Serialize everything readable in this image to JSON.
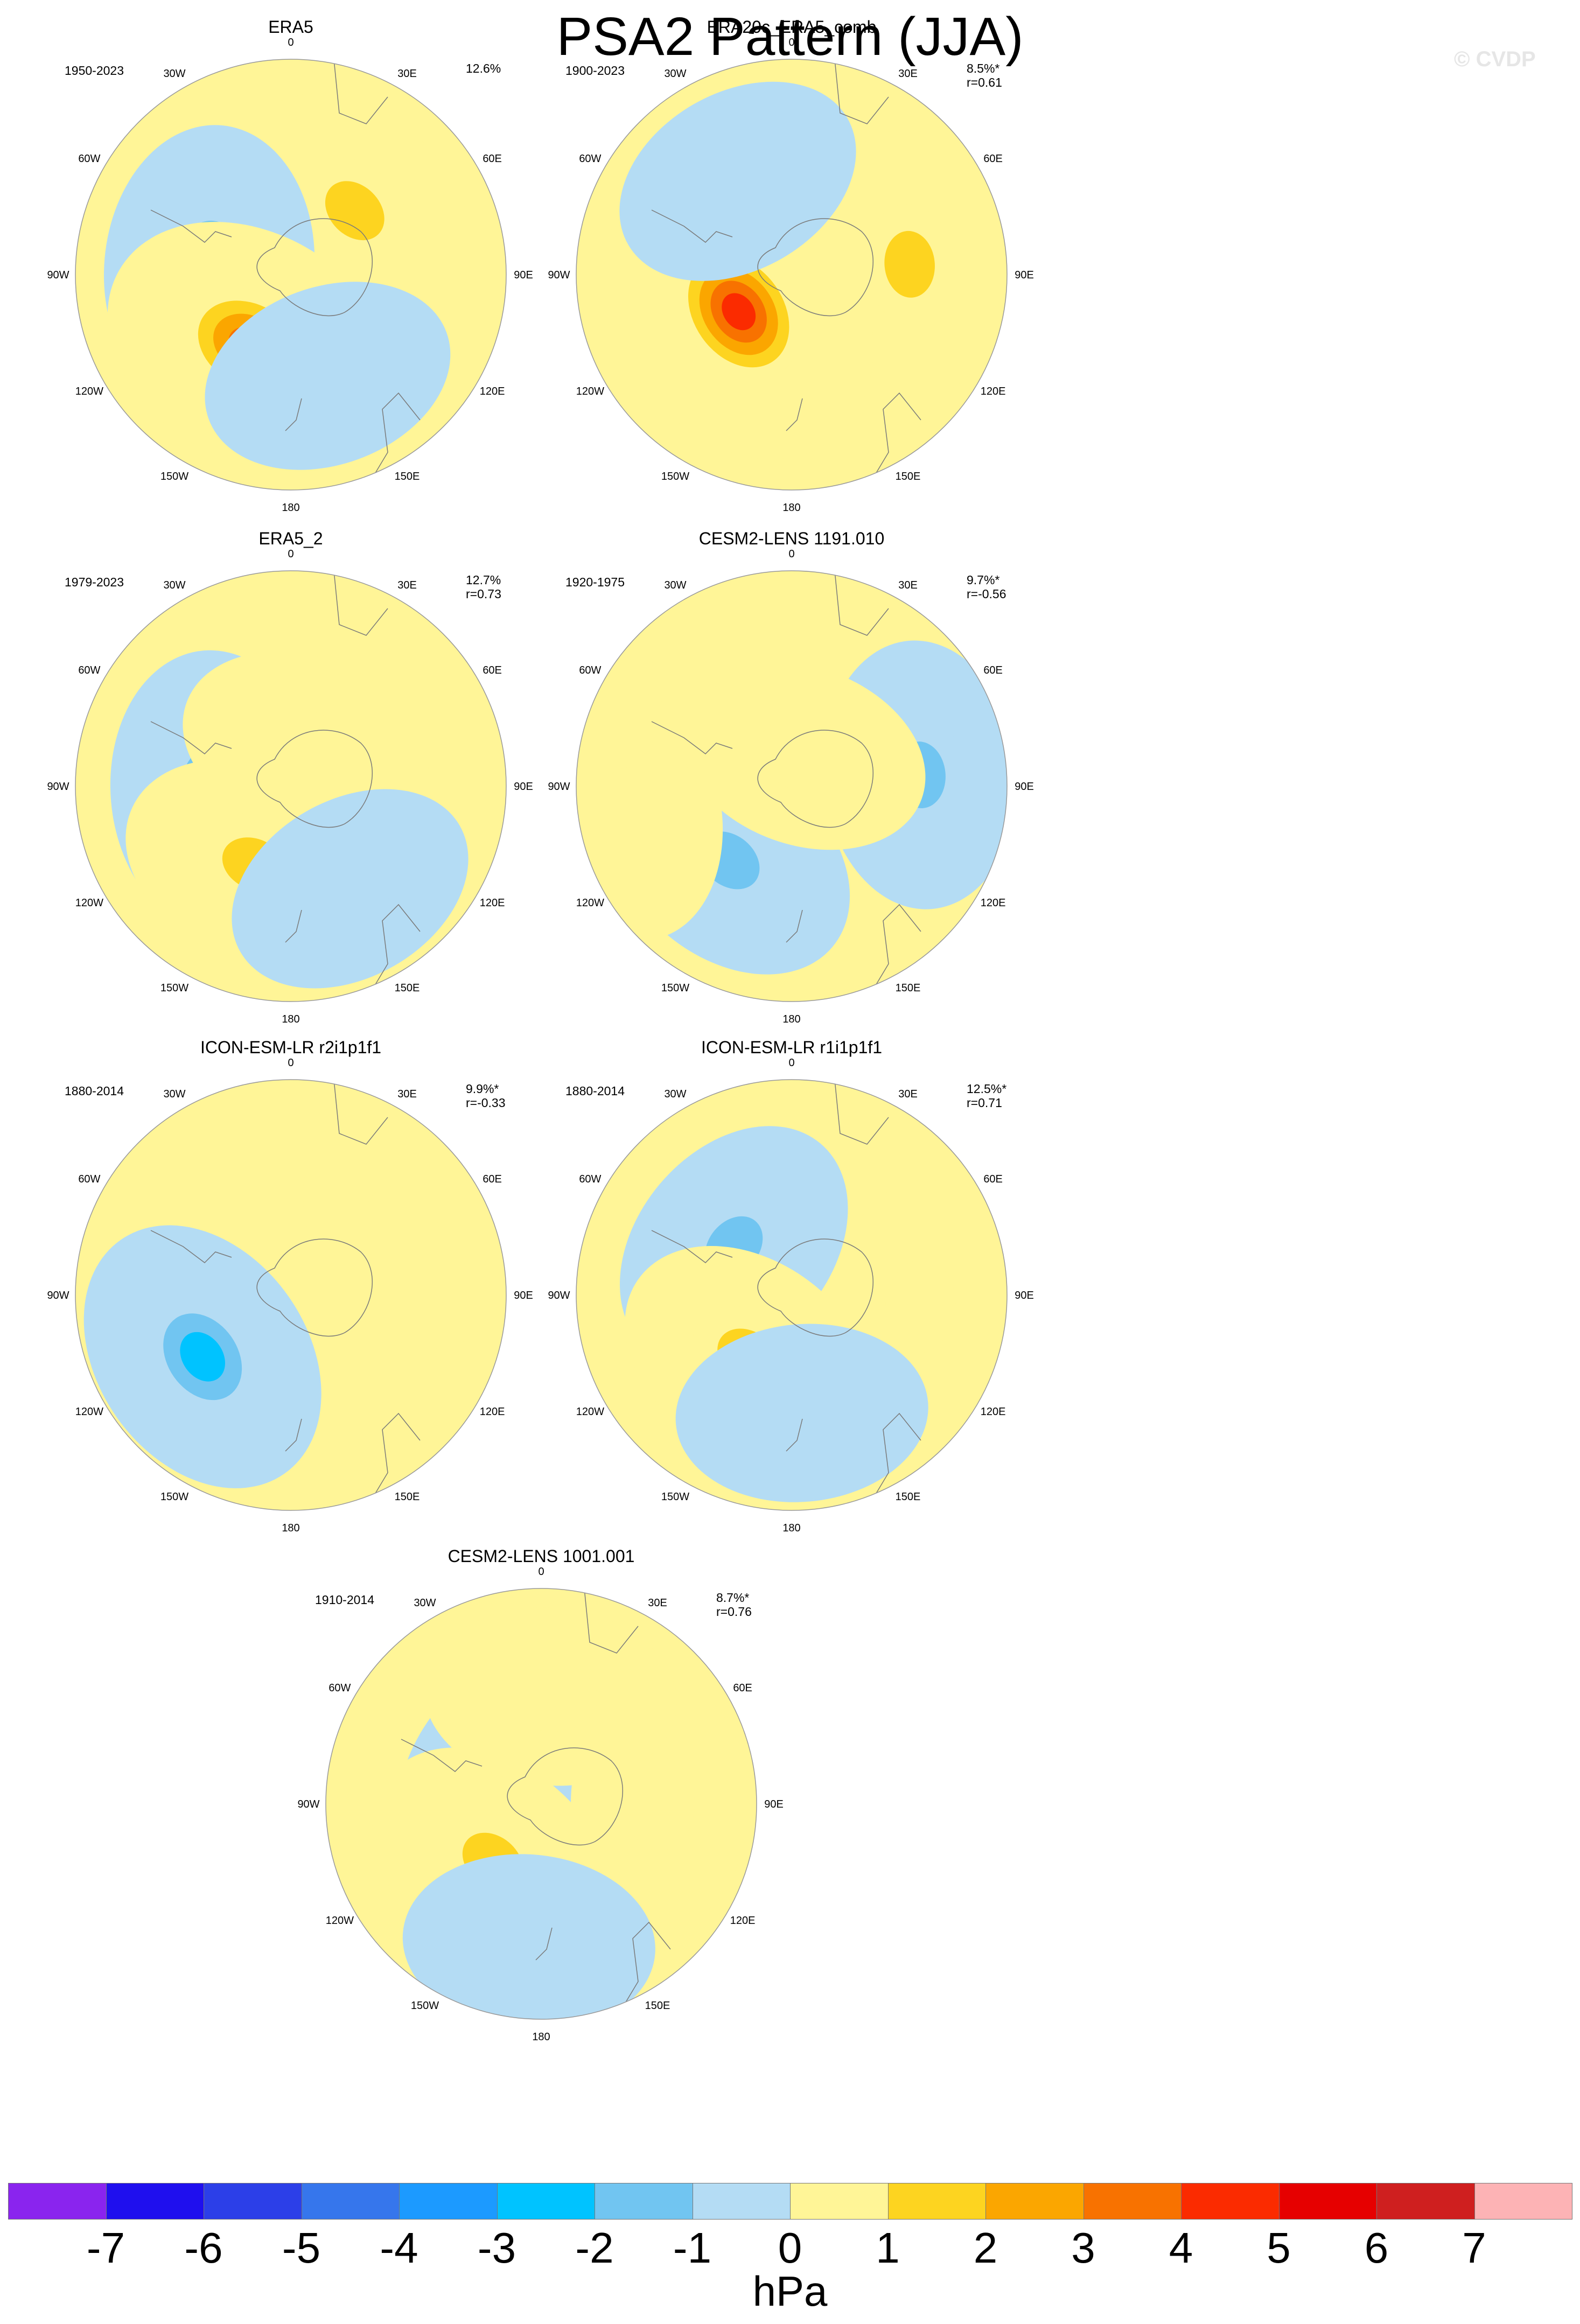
{
  "title": "PSA2 Pattern (JJA)",
  "watermark": "© CVDP",
  "longitude_labels": [
    "0",
    "30E",
    "60E",
    "90E",
    "120E",
    "150E",
    "180",
    "150W",
    "120W",
    "90W",
    "60W",
    "30W"
  ],
  "panels": [
    {
      "title": "ERA5",
      "period": "1950-2023",
      "stat1": "12.6%",
      "stat2": "",
      "blobs": [
        {
          "lon": 45,
          "lat_frac": 0.42,
          "sign": 1,
          "max": 2
        },
        {
          "lon": -85,
          "lat_frac": 0.38,
          "sign": -1,
          "max": 3
        },
        {
          "lon": -150,
          "lat_frac": 0.38,
          "sign": 1,
          "max": 4
        },
        {
          "lon": 160,
          "lat_frac": 0.5,
          "sign": -1,
          "max": 1
        }
      ]
    },
    {
      "title": "ERA20c_ERA5_comb",
      "period": "1900-2023",
      "stat1": "8.5%*",
      "stat2": "r=0.61",
      "blobs": [
        {
          "lon": 85,
          "lat_frac": 0.55,
          "sign": 1,
          "max": 2
        },
        {
          "lon": -125,
          "lat_frac": 0.3,
          "sign": 1,
          "max": 5
        },
        {
          "lon": -30,
          "lat_frac": 0.5,
          "sign": -1,
          "max": 1
        }
      ]
    },
    {
      "title": "ERA5_2",
      "period": "1979-2023",
      "stat1": "12.7%",
      "stat2": "r=0.73",
      "blobs": [
        {
          "lon": -95,
          "lat_frac": 0.35,
          "sign": -1,
          "max": 3
        },
        {
          "lon": -155,
          "lat_frac": 0.4,
          "sign": 1,
          "max": 2
        },
        {
          "lon": 20,
          "lat_frac": 0.2,
          "sign": 1,
          "max": 1
        },
        {
          "lon": 150,
          "lat_frac": 0.55,
          "sign": -1,
          "max": 1
        }
      ]
    },
    {
      "title": "CESM2-LENS 1191.010",
      "period": "1920-1975",
      "stat1": "9.7%*",
      "stat2": "r=-0.56",
      "blobs": [
        {
          "lon": 85,
          "lat_frac": 0.6,
          "sign": -1,
          "max": 2
        },
        {
          "lon": -140,
          "lat_frac": 0.45,
          "sign": -1,
          "max": 2
        },
        {
          "lon": -100,
          "lat_frac": 0.75,
          "sign": 1,
          "max": 1
        },
        {
          "lon": 20,
          "lat_frac": 0.15,
          "sign": 1,
          "max": 1
        }
      ]
    },
    {
      "title": "ICON-ESM-LR r2i1p1f1",
      "period": "1880-2014",
      "stat1": "9.9%*",
      "stat2": "r=-0.33",
      "blobs": [
        {
          "lon": -125,
          "lat_frac": 0.5,
          "sign": -1,
          "max": 3
        },
        {
          "lon": 60,
          "lat_frac": 0.6,
          "sign": 1,
          "max": 1
        }
      ]
    },
    {
      "title": "ICON-ESM-LR r1i1p1f1",
      "period": "1880-2014",
      "stat1": "12.5%*",
      "stat2": "r=0.71",
      "blobs": [
        {
          "lon": -50,
          "lat_frac": 0.35,
          "sign": -1,
          "max": 2
        },
        {
          "lon": -145,
          "lat_frac": 0.35,
          "sign": 1,
          "max": 2
        },
        {
          "lon": 95,
          "lat_frac": 0.6,
          "sign": 1,
          "max": 1
        },
        {
          "lon": 175,
          "lat_frac": 0.55,
          "sign": -1,
          "max": 1
        }
      ]
    },
    {
      "title": "CESM2-LENS 1001.001",
      "period": "1910-2014",
      "stat1": "8.7%*",
      "stat2": "r=0.76",
      "blobs": [
        {
          "lon": -60,
          "lat_frac": 0.2,
          "sign": -1,
          "max": 2
        },
        {
          "lon": -140,
          "lat_frac": 0.35,
          "sign": 1,
          "max": 2
        },
        {
          "lon": 90,
          "lat_frac": 0.55,
          "sign": 1,
          "max": 1
        },
        {
          "lon": -175,
          "lat_frac": 0.65,
          "sign": -1,
          "max": 1
        },
        {
          "lon": 5,
          "lat_frac": 0.5,
          "sign": 1,
          "max": 1
        }
      ]
    }
  ],
  "colorbar": {
    "unit": "hPa",
    "ticks": [
      "-7",
      "-6",
      "-5",
      "-4",
      "-3",
      "-2",
      "-1",
      "0",
      "1",
      "2",
      "3",
      "4",
      "5",
      "6",
      "7"
    ],
    "colors": [
      "#8a24ee",
      "#1f0fee",
      "#2c3fe8",
      "#3676ec",
      "#1c9aff",
      "#00c3ff",
      "#71c5f1",
      "#b4dcf4",
      "#fff597",
      "#fdd420",
      "#fba600",
      "#f87200",
      "#fb2b00",
      "#e60000",
      "#cf1f1f",
      "#fdb3b5"
    ]
  }
}
